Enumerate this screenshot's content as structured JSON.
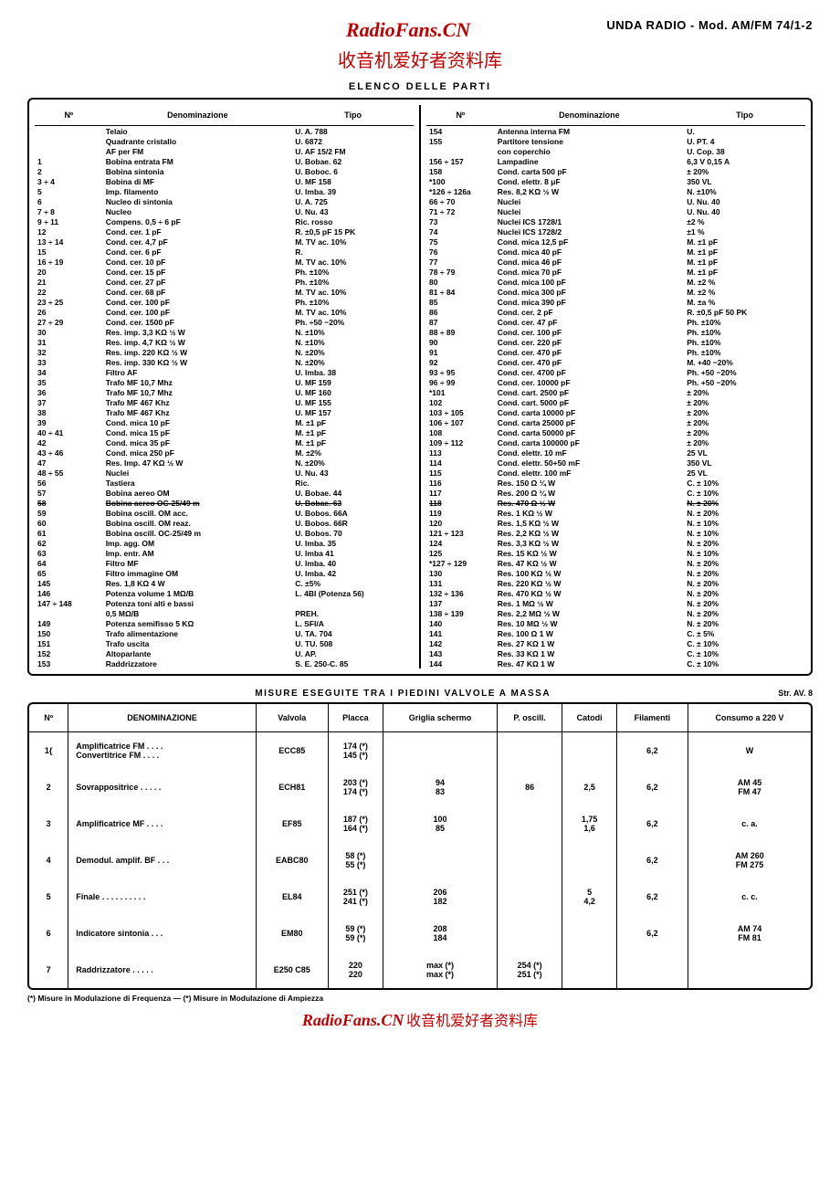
{
  "header": {
    "brand": "RadioFans.CN",
    "model": "UNDA RADIO - Mod. AM/FM 74/1-2",
    "subtitle_cn": "收音机爱好者资料库"
  },
  "parts": {
    "title": "ELENCO DELLE PARTI",
    "columns": [
      "Nº",
      "Denominazione",
      "Tipo"
    ],
    "left": [
      {
        "n": "",
        "d": "Telaio",
        "t": "U. A. 788"
      },
      {
        "n": "",
        "d": "Quadrante cristallo",
        "t": "U. 6872"
      },
      {
        "n": "",
        "d": "AF per FM",
        "t": "U. AF 15/2 FM"
      },
      {
        "n": "1",
        "d": "Bobina entrata FM",
        "t": "U. Bobae. 62"
      },
      {
        "n": "2",
        "d": "Bobina sintonia",
        "t": "U. Boboc. 6"
      },
      {
        "n": "3 ÷ 4",
        "d": "Bobina di MF",
        "t": "U. MF 158"
      },
      {
        "n": "5",
        "d": "Imp. filamento",
        "t": "U. Imba. 39"
      },
      {
        "n": "6",
        "d": "Nucleo di sintonia",
        "t": "U. A. 725"
      },
      {
        "n": "7 ÷ 8",
        "d": "Nucleo",
        "t": "U. Nu. 43"
      },
      {
        "n": "9 ÷ 11",
        "d": "Compens. 0,5 ÷ 6 pF",
        "t": "Ric. rosso"
      },
      {
        "n": "12",
        "d": "Cond. cer.   1 pF",
        "t": "R. ±0,5 pF 15 PK"
      },
      {
        "n": "13 ÷ 14",
        "d": "Cond. cer.   4,7 pF",
        "t": "M. TV ac. 10%"
      },
      {
        "n": "15",
        "d": "Cond. cer.   6 pF",
        "t": "R."
      },
      {
        "n": "16 ÷ 19",
        "d": "Cond. cer.   10 pF",
        "t": "M. TV ac. 10%"
      },
      {
        "n": "20",
        "d": "Cond. cer.   15 pF",
        "t": "Ph. ±10%"
      },
      {
        "n": "21",
        "d": "Cond. cer.   27 pF",
        "t": "Ph. ±10%"
      },
      {
        "n": "22",
        "d": "Cond. cer.   68 pF",
        "t": "M. TV ac. 10%"
      },
      {
        "n": "23 ÷ 25",
        "d": "Cond. cer.   100 pF",
        "t": "Ph. ±10%"
      },
      {
        "n": "26",
        "d": "Cond. cer.   100 pF",
        "t": "M. TV ac. 10%"
      },
      {
        "n": "27 ÷ 29",
        "d": "Cond. cer.   1500 pF",
        "t": "Ph. ÷50 −20%"
      },
      {
        "n": "30",
        "d": "Res. imp. 3,3 KΩ  ½ W",
        "t": "N. ±10%"
      },
      {
        "n": "31",
        "d": "Res. imp. 4,7 KΩ  ½ W",
        "t": "N. ±10%"
      },
      {
        "n": "32",
        "d": "Res. imp. 220 KΩ  ½ W",
        "t": "N. ±20%"
      },
      {
        "n": "33",
        "d": "Res. imp. 330 KΩ  ½ W",
        "t": "N. ±20%"
      },
      {
        "n": "34",
        "d": "Filtro AF",
        "t": "U. Imba. 38"
      },
      {
        "n": "35",
        "d": "Trafo MF 10,7 Mhz",
        "t": "U. MF 159"
      },
      {
        "n": "36",
        "d": "Trafo MF 10,7 Mhz",
        "t": "U. MF 160"
      },
      {
        "n": "37",
        "d": "Trafo MF 467 Khz",
        "t": "U. MF 155"
      },
      {
        "n": "38",
        "d": "Trafo MF 467 Khz",
        "t": "U. MF 157"
      },
      {
        "n": "39",
        "d": "Cond. mica 10 pF",
        "t": "M.  ±1 pF"
      },
      {
        "n": "40 ÷ 41",
        "d": "Cond. mica 15 pF",
        "t": "M.  ±1 pF"
      },
      {
        "n": "42",
        "d": "Cond. mica 35 pF",
        "t": "M.  ±1 pF"
      },
      {
        "n": "43 ÷ 46",
        "d": "Cond. mica 250 pF",
        "t": "M.  ±2%"
      },
      {
        "n": "47",
        "d": "Res. Imp. 47 KΩ  ½ W",
        "t": "N.  ±20%"
      },
      {
        "n": "48 ÷ 55",
        "d": "Nuclei",
        "t": "U. Nu. 43"
      },
      {
        "n": "56",
        "d": "Tastiera",
        "t": "Ric."
      },
      {
        "n": "57",
        "d": "Bobina aereo OM",
        "t": "U. Bobae. 44"
      },
      {
        "n": "58",
        "d": "Bobina aereo OC-25/49 m",
        "t": "U. Bobae. 63",
        "strike": true
      },
      {
        "n": "59",
        "d": "Bobina oscill. OM acc.",
        "t": "U. Bobos. 66A"
      },
      {
        "n": "60",
        "d": "Bobina oscill. OM reaz.",
        "t": "U. Bobos. 66R"
      },
      {
        "n": "61",
        "d": "Bobina oscill. OC-25/49 m",
        "t": "U. Bobos. 70"
      },
      {
        "n": "62",
        "d": "Imp. agg. OM",
        "t": "U. Imba. 35"
      },
      {
        "n": "63",
        "d": "Imp. entr. AM",
        "t": "U. Imba 41"
      },
      {
        "n": "64",
        "d": "Filtro MF",
        "t": "U. Imba. 40"
      },
      {
        "n": "65",
        "d": "Filtro immagine OM",
        "t": "U. Imba. 42"
      },
      {
        "n": "145",
        "d": "Res. 1,8 KΩ  4 W",
        "t": "C.  ±5%"
      },
      {
        "n": "146",
        "d": "Potenza volume 1 MΩ/B",
        "t": "L. 4BI (Potenza 56)"
      },
      {
        "n": "147 ÷ 148",
        "d": "Potenza toni alti e bassi",
        "t": ""
      },
      {
        "n": "",
        "d": "0,5 MΩ/B",
        "t": "PREH."
      },
      {
        "n": "149",
        "d": "Potenza semifisso 5 KΩ",
        "t": "L. SFI/A"
      },
      {
        "n": "150",
        "d": "Trafo alimentazione",
        "t": "U. TA. 704"
      },
      {
        "n": "151",
        "d": "Trafo uscita",
        "t": "U. TU. 508"
      },
      {
        "n": "152",
        "d": "Altoparlante",
        "t": "U. AP."
      },
      {
        "n": "153",
        "d": "Raddrizzatore",
        "t": "S. E. 250-C. 85"
      }
    ],
    "right": [
      {
        "n": "154",
        "d": "Antenna interna FM",
        "t": "U."
      },
      {
        "n": "155",
        "d": "Partitore tensione",
        "t": "U. PT. 4"
      },
      {
        "n": "",
        "d": "con coperchio",
        "t": "U. Cop. 38"
      },
      {
        "n": "156 ÷ 157",
        "d": "Lampadine",
        "t": "6,3 V  0,15 A"
      },
      {
        "n": "158",
        "d": "Cond. carta 500 pF",
        "t": "± 20%"
      },
      {
        "n": "*100",
        "d": "Cond. elettr.  8 μF",
        "t": "350 VL"
      },
      {
        "n": "*126 ÷ 126a",
        "d": "Res. 8,2 KΩ  ½ W",
        "t": "N. ±10%"
      },
      {
        "n": "66 ÷ 70",
        "d": "Nuclei",
        "t": "U. Nu. 40"
      },
      {
        "n": "71 ÷ 72",
        "d": "Nuclei",
        "t": "U. Nu. 40"
      },
      {
        "n": "73",
        "d": "Nuclei ICS 1728/1",
        "t": "±2 %"
      },
      {
        "n": "74",
        "d": "Nuclei ICS 1728/2",
        "t": "±1 %"
      },
      {
        "n": "75",
        "d": "Cond. mica   12,5 pF",
        "t": "M. ±1 pF"
      },
      {
        "n": "76",
        "d": "Cond. mica   40 pF",
        "t": "M. ±1 pF"
      },
      {
        "n": "77",
        "d": "Cond. mica   46 pF",
        "t": "M. ±1 pF"
      },
      {
        "n": "78 ÷ 79",
        "d": "Cond. mica   70 pF",
        "t": "M. ±1 pF"
      },
      {
        "n": "80",
        "d": "Cond. mica   100 pF",
        "t": "M. ±2 %"
      },
      {
        "n": "81 ÷ 84",
        "d": "Cond. mica   300 pF",
        "t": "M. ±2 %"
      },
      {
        "n": "85",
        "d": "Cond. mica   390 pF",
        "t": "M. ±a %"
      },
      {
        "n": "86",
        "d": "Cond. cer.   2 pF",
        "t": "R. ±0,5 pF 50 PK"
      },
      {
        "n": "87",
        "d": "Cond. cer.   47 pF",
        "t": "Ph. ±10%"
      },
      {
        "n": "88 ÷ 89",
        "d": "Cond. cer.   100 pF",
        "t": "Ph. ±10%"
      },
      {
        "n": "90",
        "d": "Cond. cer.   220 pF",
        "t": "Ph. ±10%"
      },
      {
        "n": "91",
        "d": "Cond. cer.   470 pF",
        "t": "Ph. ±10%"
      },
      {
        "n": "92",
        "d": "Cond. cer.   470 pF",
        "t": "M. +40 −20%"
      },
      {
        "n": "93 ÷ 95",
        "d": "Cond. cer.   4700 pF",
        "t": "Ph. +50 −20%"
      },
      {
        "n": "96 ÷ 99",
        "d": "Cond. cer.   10000 pF",
        "t": "Ph. +50 −20%"
      },
      {
        "n": "*101",
        "d": "Cond. cart.  2500 pF",
        "t": "± 20%"
      },
      {
        "n": "102",
        "d": "Cond. cart.  5000 pF",
        "t": "± 20%"
      },
      {
        "n": "103 ÷ 105",
        "d": "Cond. carta  10000 pF",
        "t": "± 20%"
      },
      {
        "n": "106 ÷ 107",
        "d": "Cond. carta  25000 pF",
        "t": "± 20%"
      },
      {
        "n": "108",
        "d": "Cond. carta  50000 pF",
        "t": "± 20%"
      },
      {
        "n": "109 ÷ 112",
        "d": "Cond. carta  100000 pF",
        "t": "± 20%"
      },
      {
        "n": "113",
        "d": "Cond. elettr.   10 mF",
        "t": "25 VL"
      },
      {
        "n": "114",
        "d": "Cond. elettr. 50+50 mF",
        "t": "350 VL"
      },
      {
        "n": "115",
        "d": "Cond. elettr.  100 mF",
        "t": "25 VL"
      },
      {
        "n": "116",
        "d": "Res.  150 Ω   ¼ W",
        "t": "C.  ± 10%"
      },
      {
        "n": "117",
        "d": "Res.  200 Ω   ¼ W",
        "t": "C.  ± 10%"
      },
      {
        "n": "118",
        "d": "Res.  470 Ω   ½ W",
        "t": "N.  ± 20%",
        "strike": true
      },
      {
        "n": "119",
        "d": "Res.  1 KΩ    ½ W",
        "t": "N.  ± 20%"
      },
      {
        "n": "120",
        "d": "Res.  1,5 KΩ  ½ W",
        "t": "N.  ± 10%"
      },
      {
        "n": "121 ÷ 123",
        "d": "Res.  2,2 KΩ  ½ W",
        "t": "N.  ± 10%"
      },
      {
        "n": "124",
        "d": "Res.  3,3 KΩ  ½ W",
        "t": "N.  ± 20%"
      },
      {
        "n": "125",
        "d": "Res.  15 KΩ   ½ W",
        "t": "N.  ± 10%"
      },
      {
        "n": "*127 ÷ 129",
        "d": "Res.  47 KΩ   ½ W",
        "t": "N.  ± 20%"
      },
      {
        "n": "130",
        "d": "Res.  100 KΩ  ½ W",
        "t": "N.  ± 20%"
      },
      {
        "n": "131",
        "d": "Res.  220 KΩ  ½ W",
        "t": "N.  ± 20%"
      },
      {
        "n": "132 ÷ 136",
        "d": "Res.  470 KΩ  ½ W",
        "t": "N.  ± 20%"
      },
      {
        "n": "137",
        "d": "Res.  1 MΩ    ½ W",
        "t": "N.  ± 20%"
      },
      {
        "n": "138 ÷ 139",
        "d": "Res.  2,2 MΩ  ½ W",
        "t": "N.  ± 20%"
      },
      {
        "n": "140",
        "d": "Res.  10 MΩ   ½ W",
        "t": "N.  ± 20%"
      },
      {
        "n": "141",
        "d": "Res.  100 Ω   1 W",
        "t": "C.  ± 5%"
      },
      {
        "n": "142",
        "d": "Res.  27 KΩ   1 W",
        "t": "C.  ± 10%"
      },
      {
        "n": "143",
        "d": "Res.  33 KΩ   1 W",
        "t": "C.  ± 10%"
      },
      {
        "n": "144",
        "d": "Res.  47 KΩ   1 W",
        "t": "C.  ± 10%"
      }
    ]
  },
  "measure": {
    "title": "MISURE ESEGUITE TRA I PIEDINI VALVOLE A MASSA",
    "str": "Str. AV. 8",
    "columns": [
      "Nº",
      "DENOMINAZIONE",
      "Valvola",
      "Placca",
      "Griglia schermo",
      "P. oscill.",
      "Catodi",
      "Filamenti",
      "Consumo a 220 V"
    ],
    "rows": [
      {
        "n": "1{",
        "d": "Amplificatrice FM . . . .\nConvertitrice FM . . . .",
        "v": "ECC85",
        "p": "174 (*)\n145 (*)",
        "g": "",
        "po": "",
        "c": "",
        "f": "6,2",
        "co": "W"
      },
      {
        "n": "2",
        "d": "Sovrappositrice . . . . .",
        "v": "ECH81",
        "p": "203 (*)\n174 (*)",
        "g": "94\n83",
        "po": "86",
        "c": "2,5",
        "f": "6,2",
        "co": "AM 45\nFM 47"
      },
      {
        "n": "3",
        "d": "Amplificatrice MF . . . .",
        "v": "EF85",
        "p": "187 (*)\n164 (*)",
        "g": "100\n85",
        "po": "",
        "c": "1,75\n1,6",
        "f": "6,2",
        "co": "c. a."
      },
      {
        "n": "4",
        "d": "Demodul. amplif. BF . . .",
        "v": "EABC80",
        "p": "58 (*)\n55 (*)",
        "g": "",
        "po": "",
        "c": "",
        "f": "6,2",
        "co": "AM 260\nFM 275"
      },
      {
        "n": "5",
        "d": "Finale . . . . . . . . . .",
        "v": "EL84",
        "p": "251 (*)\n241 (*)",
        "g": "206\n182",
        "po": "",
        "c": "5\n4,2",
        "f": "6,2",
        "co": "c. c."
      },
      {
        "n": "6",
        "d": "Indicatore sintonia . . .",
        "v": "EM80",
        "p": "59 (*)\n59 (*)",
        "g": "208\n184",
        "po": "",
        "c": "",
        "f": "6,2",
        "co": "AM 74\nFM 81"
      },
      {
        "n": "7",
        "d": "Raddrizzatore . . . . .",
        "v": "E250 C85",
        "p": "220\n220",
        "g": "max (*)\nmax (*)",
        "po": "254 (*)\n251 (*)",
        "c": "",
        "f": "",
        "co": ""
      }
    ],
    "footnote": "(*) Misure in Modulazione di Frequenza — (*) Misure in Modulazione di Ampiezza"
  },
  "footer": {
    "brand": "RadioFans.CN",
    "cn": "收音机爱好者资料库"
  }
}
